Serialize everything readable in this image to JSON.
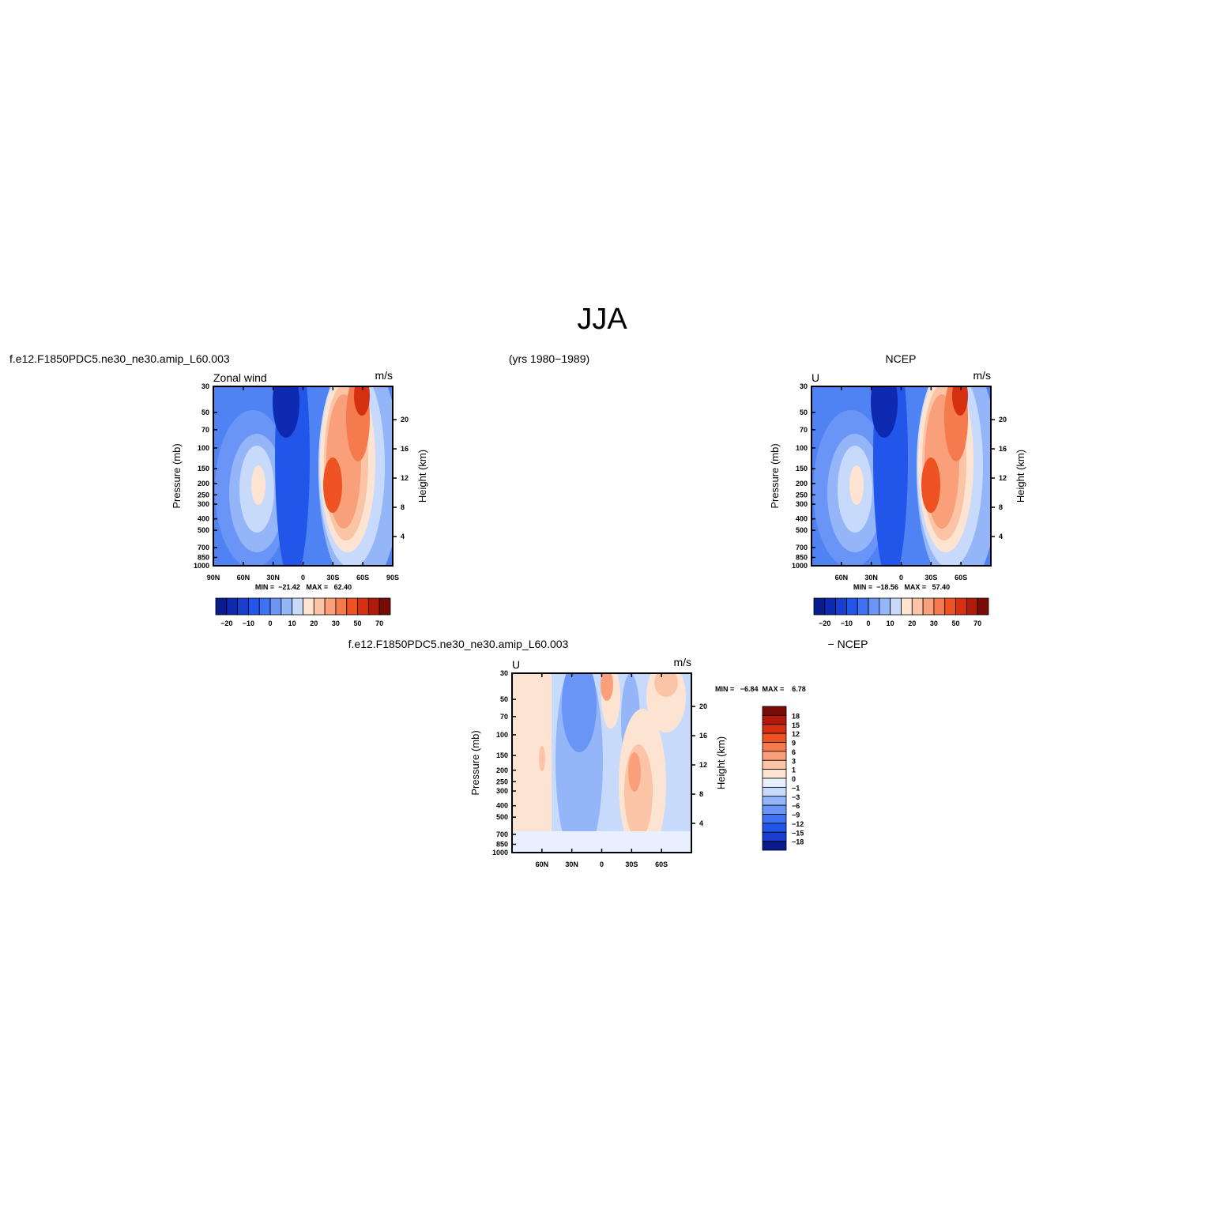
{
  "title": "JJA",
  "panels": [
    {
      "headers": [
        "f.e12.F1850PDC5.ne30_ne30.amip_L60.003",
        "(yrs 1980−1989)"
      ],
      "label_left": "Zonal wind",
      "label_right": "m/s",
      "y_title": "Pressure (mb)",
      "y2_title": "Height (km)",
      "pressure_ticks": [
        30,
        50,
        70,
        100,
        150,
        200,
        250,
        300,
        400,
        500,
        700,
        850,
        1000
      ],
      "height_ticks": [
        20,
        16,
        12,
        8,
        4
      ],
      "lat_ticks": [
        {
          "value": 90,
          "label": "90N"
        },
        {
          "value": 60,
          "label": "60N"
        },
        {
          "value": 30,
          "label": "30N"
        },
        {
          "value": 0,
          "label": "0"
        },
        {
          "value": -30,
          "label": "30S"
        },
        {
          "value": -60,
          "label": "60S"
        },
        {
          "value": -90,
          "label": "90S"
        }
      ],
      "stats": "MIN =  −21.42   MAX =   62.40",
      "colorbar": {
        "colors": [
          "#0a1c8c",
          "#0e2ab0",
          "#1a3fd0",
          "#2255ea",
          "#3f72f2",
          "#6a95f6",
          "#94b6f9",
          "#c8dafc",
          "#fde4d2",
          "#fcc4a6",
          "#f9a07a",
          "#f57a4e",
          "#ee5222",
          "#d63013",
          "#b01a0a",
          "#7a0a06"
        ],
        "labels": [
          "−20",
          "−10",
          "0",
          "10",
          "20",
          "30",
          "50",
          "70"
        ]
      }
    },
    {
      "headers": [
        "NCEP"
      ],
      "label_left": "U",
      "label_right": "m/s",
      "y_title": "Pressure (mb)",
      "y2_title": "Height (km)",
      "pressure_ticks": [
        30,
        50,
        70,
        100,
        150,
        200,
        250,
        300,
        400,
        500,
        700,
        850,
        1000
      ],
      "height_ticks": [
        20,
        16,
        12,
        8,
        4
      ],
      "lat_ticks": [
        {
          "value": 60,
          "label": "60N"
        },
        {
          "value": 30,
          "label": "30N"
        },
        {
          "value": 0,
          "label": "0"
        },
        {
          "value": -30,
          "label": "30S"
        },
        {
          "value": -60,
          "label": "60S"
        }
      ],
      "stats": "MIN =  −18.56   MAX =   57.40",
      "colorbar": {
        "colors": [
          "#0a1c8c",
          "#0e2ab0",
          "#1a3fd0",
          "#2255ea",
          "#3f72f2",
          "#6a95f6",
          "#94b6f9",
          "#c8dafc",
          "#fde4d2",
          "#fcc4a6",
          "#f9a07a",
          "#f57a4e",
          "#ee5222",
          "#d63013",
          "#b01a0a",
          "#7a0a06"
        ],
        "labels": [
          "−20",
          "−10",
          "0",
          "10",
          "20",
          "30",
          "50",
          "70"
        ]
      }
    },
    {
      "headers": [
        "f.e12.F1850PDC5.ne30_ne30.amip_L60.003",
        "− NCEP"
      ],
      "label_left": "U",
      "label_right": "m/s",
      "y_title": "Pressure (mb)",
      "y2_title": "Height (km)",
      "pressure_ticks": [
        30,
        50,
        70,
        100,
        150,
        200,
        250,
        300,
        400,
        500,
        700,
        850,
        1000
      ],
      "height_ticks": [
        20,
        16,
        12,
        8,
        4
      ],
      "lat_ticks": [
        {
          "value": 60,
          "label": "60N"
        },
        {
          "value": 30,
          "label": "30N"
        },
        {
          "value": 0,
          "label": "0"
        },
        {
          "value": -30,
          "label": "30S"
        },
        {
          "value": -60,
          "label": "60S"
        }
      ],
      "stats": "MIN =   −6.84  MAX =    6.78",
      "colorbar": {
        "colors": [
          "#7a0a06",
          "#b01a0a",
          "#d63013",
          "#ee5222",
          "#f57a4e",
          "#f9a07a",
          "#fcc4a6",
          "#fde4d2",
          "#e8f0fe",
          "#c8dafc",
          "#94b6f9",
          "#6a95f6",
          "#3f72f2",
          "#2255ea",
          "#1a3fd0",
          "#0a1c8c"
        ],
        "labels": [
          "18",
          "15",
          "12",
          "9",
          "6",
          "3",
          "1",
          "0",
          "−1",
          "−3",
          "−6",
          "−9",
          "−12",
          "−15",
          "−18"
        ]
      }
    }
  ]
}
